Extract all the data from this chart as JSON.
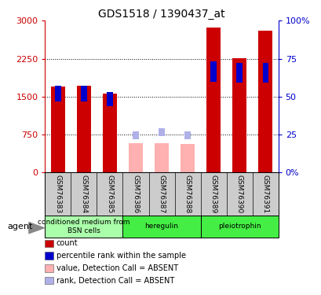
{
  "title": "GDS1518 / 1390437_at",
  "samples": [
    "GSM76383",
    "GSM76384",
    "GSM76385",
    "GSM76386",
    "GSM76387",
    "GSM76388",
    "GSM76389",
    "GSM76390",
    "GSM76391"
  ],
  "count_present": [
    1700,
    1710,
    1560,
    null,
    null,
    null,
    2870,
    2260,
    2800
  ],
  "rank_present_pct": [
    57,
    57,
    53,
    null,
    null,
    null,
    73,
    72,
    72
  ],
  "count_absent": [
    null,
    null,
    null,
    580,
    580,
    560,
    null,
    null,
    null
  ],
  "rank_absent_pct": [
    null,
    null,
    null,
    27,
    29,
    27,
    null,
    null,
    null
  ],
  "ylim_left": [
    0,
    3000
  ],
  "ylim_right": [
    0,
    100
  ],
  "yticks_left": [
    0,
    750,
    1500,
    2250,
    3000
  ],
  "yticks_right": [
    0,
    25,
    50,
    75,
    100
  ],
  "yticklabels_left": [
    "0",
    "750",
    "1500",
    "2250",
    "3000"
  ],
  "yticklabels_right": [
    "0%",
    "25",
    "50",
    "75",
    "100%"
  ],
  "left_axis_color": "#cc0000",
  "right_axis_color": "#0000cc",
  "bar_color_red": "#cc0000",
  "bar_color_blue": "#0000cc",
  "bar_color_pink": "#ffb0b0",
  "bar_color_lightblue": "#b0b0e8",
  "groups": [
    {
      "label": "conditioned medium from\nBSN cells",
      "start": 0,
      "end": 3,
      "color": "#aaffaa"
    },
    {
      "label": "heregulin",
      "start": 3,
      "end": 6,
      "color": "#44ee44"
    },
    {
      "label": "pleiotrophin",
      "start": 6,
      "end": 9,
      "color": "#44ee44"
    }
  ],
  "legend_items": [
    {
      "color": "#cc0000",
      "label": "count"
    },
    {
      "color": "#0000cc",
      "label": "percentile rank within the sample"
    },
    {
      "color": "#ffb0b0",
      "label": "value, Detection Call = ABSENT"
    },
    {
      "color": "#b0b0e8",
      "label": "rank, Detection Call = ABSENT"
    }
  ],
  "agent_label": "agent",
  "bar_width": 0.55,
  "rank_square_size": 0.18
}
